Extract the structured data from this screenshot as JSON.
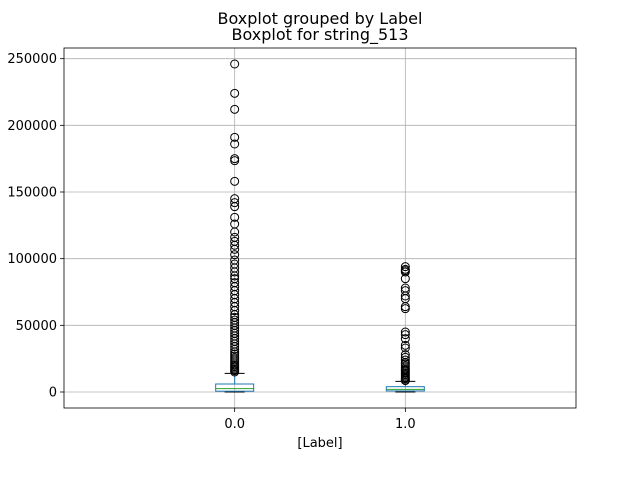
{
  "chart_data": {
    "type": "boxplot",
    "title": "Boxplot grouped by Label",
    "subtitle": "Boxplot for string_513",
    "xlabel": "[Label]",
    "ylabel": "",
    "categories": [
      "0.0",
      "1.0"
    ],
    "ylim": [
      -12000,
      258000
    ],
    "yticks": [
      0,
      50000,
      100000,
      150000,
      200000,
      250000
    ],
    "ytick_labels": [
      "0",
      "50000",
      "100000",
      "150000",
      "200000",
      "250000"
    ],
    "grid": true,
    "box_color": "#1f77b4",
    "median_color": "#2ca02c",
    "boxes": [
      {
        "label": "0.0",
        "whisker_low": 0,
        "q1": 600,
        "median": 2500,
        "q3": 6000,
        "whisker_high": 14000,
        "outliers": [
          246000,
          224000,
          212000,
          191000,
          186000,
          175000,
          173500,
          158000,
          145000,
          142000,
          139000,
          131000,
          126000,
          120000,
          116000,
          113000,
          110000,
          107000,
          103000,
          99000,
          96000,
          93000,
          90000,
          87000,
          85000,
          82000,
          79000,
          76000,
          73000,
          70000,
          67000,
          64000,
          61000,
          58000,
          56000,
          54000,
          52000,
          50000,
          48000,
          46000,
          44000,
          42000,
          40000,
          38000,
          36000,
          34000,
          32000,
          30000,
          28500,
          27000,
          25500,
          24000,
          22500,
          21000,
          20000,
          19000,
          18000,
          17000,
          16000,
          15000
        ]
      },
      {
        "label": "1.0",
        "whisker_low": 0,
        "q1": 800,
        "median": 2000,
        "q3": 4000,
        "whisker_high": 8000,
        "outliers": [
          94000,
          92000,
          91000,
          90000,
          85000,
          78000,
          76000,
          72000,
          70000,
          64000,
          62500,
          45000,
          43000,
          40000,
          35000,
          33000,
          28000,
          26000,
          24000,
          22000,
          21000,
          19500,
          18000,
          17000,
          16000,
          15000,
          14000,
          13000,
          12000,
          11000,
          10000,
          9000,
          8600
        ]
      }
    ]
  }
}
